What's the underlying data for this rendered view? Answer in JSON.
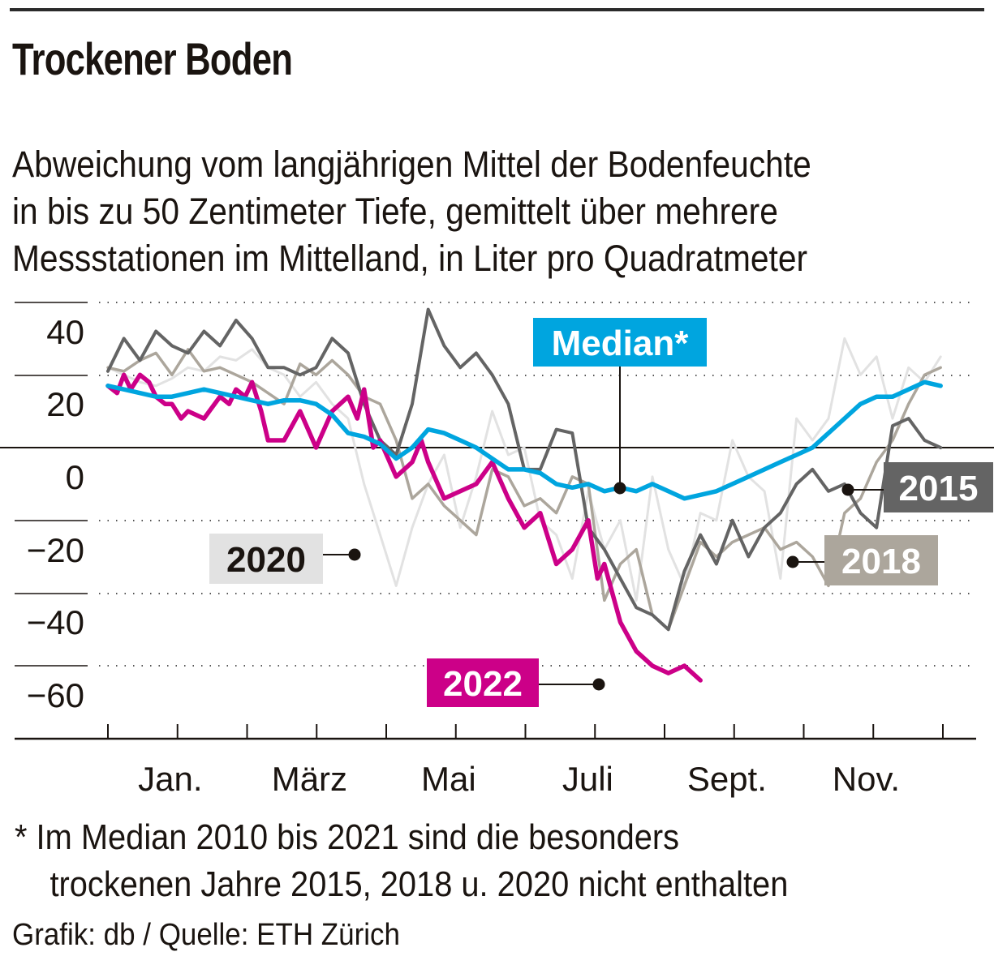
{
  "header": {
    "title": "Trockener Boden",
    "subtitle_lines": [
      "Abweichung vom langjährigen Mittel der Bodenfeuchte",
      "in bis zu 50 Zentimeter Tiefe, gemittelt über mehrere",
      "Messstationen im Mittelland, in Liter pro Quadratmeter"
    ]
  },
  "footer": {
    "footnote_lines": [
      "* Im Median 2010 bis 2021 sind die besonders",
      "trockenen Jahre 2015, 2018 u. 2020 nicht enthalten"
    ],
    "credit": "Grafik: db / Quelle: ETH Zürich"
  },
  "colors": {
    "median": "#00a5df",
    "y2022": "#cc0088",
    "y2015": "#646464",
    "y2018": "#aca69c",
    "y2020": "#e2e2e2",
    "text": "#1a1410"
  },
  "chart_data": {
    "type": "line",
    "title": "Trockener Boden",
    "xlabel": "",
    "ylabel": "Abweichung in Liter pro Quadratmeter",
    "ylim": [
      -80,
      60
    ],
    "yticks": [
      40,
      20,
      0,
      -20,
      -40,
      -60
    ],
    "ytick_labels": [
      "40",
      "20",
      "0",
      "−20",
      "−40",
      "−60"
    ],
    "xlim": [
      0,
      365
    ],
    "month_labels": [
      "Jan.",
      "März",
      "Mai",
      "Juli",
      "Sept.",
      "Nov."
    ],
    "month_label_months": [
      1,
      3,
      5,
      7,
      9,
      11
    ],
    "grid": "dotted horizontal",
    "x_unit": "day of year",
    "series": [
      {
        "name": "2020",
        "label": "2020",
        "x": [
          0,
          7,
          14,
          21,
          28,
          35,
          42,
          49,
          56,
          63,
          70,
          77,
          84,
          91,
          98,
          105,
          112,
          119,
          126,
          133,
          140,
          147,
          154,
          161,
          168,
          175,
          182,
          189,
          196,
          203,
          210,
          217,
          224,
          231,
          238,
          245,
          252,
          259,
          266,
          273,
          280,
          287,
          294,
          301,
          308,
          315,
          322,
          329,
          336,
          343,
          350,
          357,
          364
        ],
        "values": [
          22,
          20,
          18,
          17,
          19,
          22,
          21,
          25,
          24,
          27,
          22,
          20,
          14,
          18,
          12,
          8,
          -10,
          -24,
          -38,
          -22,
          -10,
          -2,
          -22,
          -8,
          10,
          -2,
          0,
          -20,
          -24,
          -36,
          -12,
          -28,
          -20,
          -42,
          -8,
          -28,
          -38,
          -18,
          -20,
          2,
          -8,
          -12,
          -36,
          8,
          2,
          8,
          30,
          20,
          25,
          8,
          22,
          18,
          25
        ],
        "label_anchor_day": 112
      },
      {
        "name": "2018",
        "label": "2018",
        "x": [
          0,
          7,
          14,
          21,
          28,
          35,
          42,
          49,
          56,
          63,
          70,
          77,
          84,
          91,
          98,
          105,
          112,
          119,
          126,
          133,
          140,
          147,
          154,
          161,
          168,
          175,
          182,
          189,
          196,
          203,
          210,
          217,
          224,
          231,
          238,
          245,
          252,
          259,
          266,
          273,
          280,
          287,
          294,
          301,
          308,
          315,
          322,
          329,
          336,
          343,
          350,
          357,
          364
        ],
        "values": [
          22,
          21,
          24,
          26,
          20,
          27,
          21,
          22,
          20,
          18,
          15,
          12,
          23,
          20,
          24,
          20,
          14,
          12,
          2,
          -14,
          -10,
          -16,
          -20,
          -24,
          -6,
          -8,
          -16,
          -14,
          -18,
          -8,
          -10,
          -42,
          -32,
          -28,
          -46,
          -50,
          -38,
          -26,
          -30,
          -26,
          -24,
          -22,
          -28,
          -26,
          -30,
          -38,
          -18,
          -14,
          -4,
          2,
          12,
          20,
          22
        ],
        "label_anchor_day": 296
      },
      {
        "name": "2015",
        "label": "2015",
        "x": [
          0,
          7,
          14,
          21,
          28,
          35,
          42,
          49,
          56,
          63,
          70,
          77,
          84,
          91,
          98,
          105,
          112,
          119,
          126,
          133,
          140,
          147,
          154,
          161,
          168,
          175,
          182,
          189,
          196,
          203,
          210,
          217,
          224,
          231,
          238,
          245,
          252,
          259,
          266,
          273,
          280,
          287,
          294,
          301,
          308,
          315,
          322,
          329,
          336,
          343,
          350,
          357,
          364
        ],
        "values": [
          21,
          30,
          24,
          32,
          28,
          26,
          32,
          28,
          35,
          30,
          22,
          22,
          20,
          22,
          30,
          26,
          12,
          2,
          -2,
          12,
          38,
          28,
          22,
          26,
          20,
          12,
          -6,
          -6,
          5,
          4,
          -22,
          -28,
          -36,
          -44,
          -46,
          -50,
          -34,
          -24,
          -32,
          -20,
          -30,
          -22,
          -18,
          -10,
          -6,
          -12,
          -10,
          -18,
          -22,
          6,
          8,
          2,
          0
        ],
        "label_anchor_day": 310
      },
      {
        "name": "2022",
        "label": "2022",
        "x": [
          0,
          4,
          7,
          10,
          14,
          18,
          21,
          25,
          28,
          32,
          35,
          42,
          49,
          53,
          56,
          60,
          63,
          67,
          70,
          77,
          84,
          91,
          98,
          105,
          109,
          112,
          116,
          119,
          126,
          133,
          137,
          140,
          147,
          154,
          161,
          168,
          175,
          182,
          189,
          196,
          203,
          210,
          214,
          217,
          224,
          231,
          238,
          245,
          252,
          259
        ],
        "values": [
          17,
          15,
          20,
          16,
          20,
          18,
          14,
          12,
          12,
          8,
          10,
          8,
          14,
          12,
          16,
          14,
          18,
          10,
          2,
          2,
          10,
          0,
          10,
          14,
          8,
          16,
          0,
          2,
          -8,
          -4,
          2,
          -4,
          -14,
          -12,
          -10,
          -4,
          -14,
          -22,
          -18,
          -32,
          -28,
          -20,
          -36,
          -32,
          -48,
          -56,
          -60,
          -62,
          -60,
          -64
        ],
        "label_anchor_day": 237
      },
      {
        "name": "Median",
        "label": "Median*",
        "x": [
          0,
          7,
          14,
          21,
          28,
          35,
          42,
          49,
          56,
          63,
          70,
          77,
          84,
          91,
          98,
          105,
          112,
          119,
          126,
          133,
          140,
          147,
          154,
          161,
          168,
          175,
          182,
          189,
          196,
          203,
          210,
          217,
          224,
          231,
          238,
          245,
          252,
          259,
          266,
          273,
          280,
          287,
          294,
          301,
          308,
          315,
          322,
          329,
          336,
          343,
          350,
          357,
          364
        ],
        "values": [
          17,
          16,
          15,
          14,
          14,
          15,
          16,
          15,
          14,
          13,
          12,
          13,
          13,
          12,
          9,
          4,
          3,
          1,
          -3,
          0,
          5,
          4,
          2,
          0,
          -3,
          -6,
          -6,
          -7,
          -10,
          -11,
          -10,
          -12,
          -11,
          -12,
          -10,
          -12,
          -14,
          -13,
          -12,
          -10,
          -8,
          -6,
          -4,
          -2,
          0,
          4,
          8,
          12,
          14,
          14,
          16,
          18,
          17
        ],
        "label_anchor_day": 218
      }
    ]
  }
}
